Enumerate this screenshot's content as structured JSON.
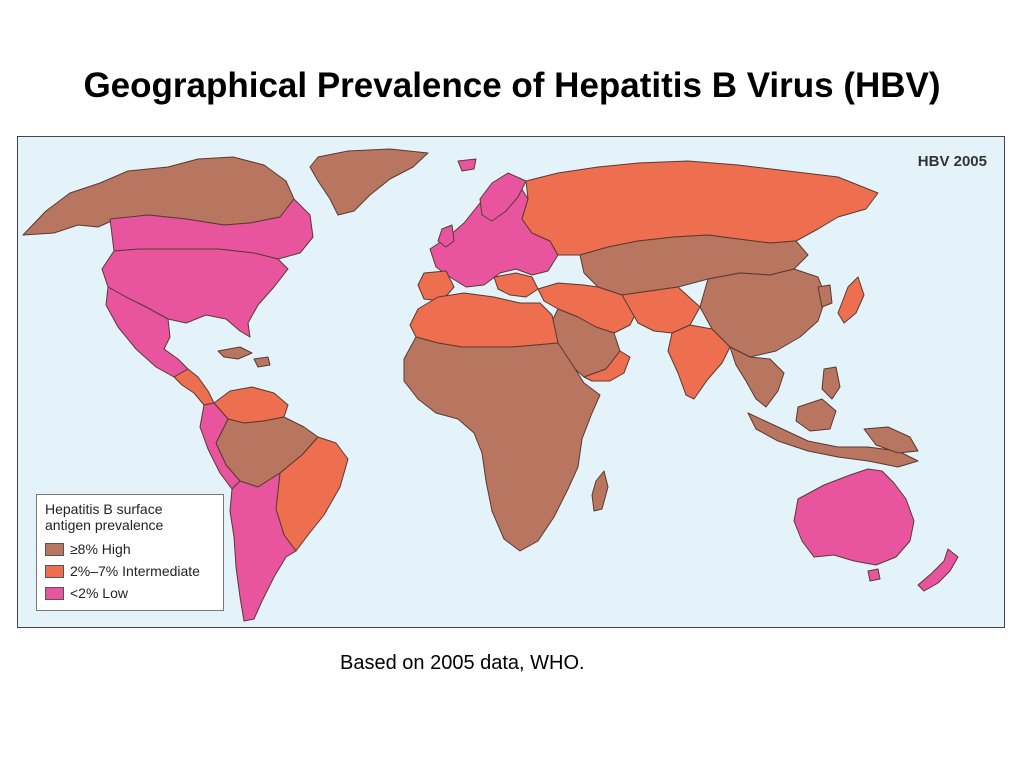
{
  "slide": {
    "title": "Geographical Prevalence of Hepatitis B Virus (HBV)",
    "source_note": "Based on 2005 data, WHO."
  },
  "map": {
    "label": "HBV 2005",
    "colors": {
      "ocean": "#e4f3fa",
      "high": "#b87560",
      "intermediate": "#ee6e50",
      "low": "#e8559e"
    },
    "legend": {
      "title_line1": "Hepatitis B surface",
      "title_line2": "antigen prevalence",
      "items": [
        {
          "label": "≥8%  High",
          "color": "#b87560"
        },
        {
          "label": "2%–7% Intermediate",
          "color": "#ee6e50"
        },
        {
          "label": "<2%  Low",
          "color": "#e8559e"
        }
      ]
    }
  }
}
